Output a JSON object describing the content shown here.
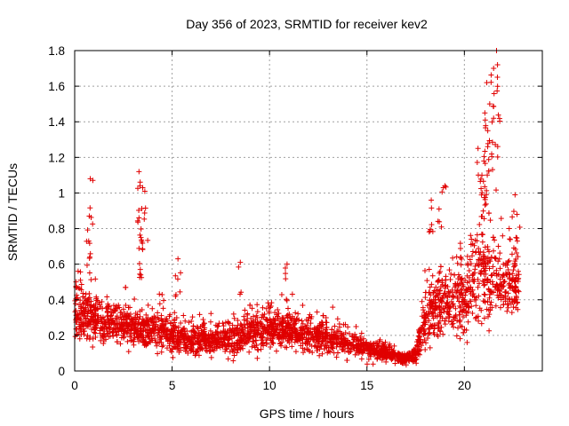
{
  "chart_data": {
    "type": "scatter",
    "title": "Day 356 of 2023, SRMTID for receiver kev2",
    "xlabel": "GPS time / hours",
    "ylabel": "SRMTID / TECUs",
    "xlim": [
      0,
      24
    ],
    "ylim": [
      0,
      1.8
    ],
    "xticks": [
      0,
      5,
      10,
      15,
      20
    ],
    "yticks": [
      0,
      0.2,
      0.4,
      0.6,
      0.8,
      1,
      1.2,
      1.4,
      1.6,
      1.8
    ],
    "grid": true,
    "marker": "+",
    "color": "#e00000",
    "series": [
      {
        "name": "kev2",
        "profile": {
          "x": [
            0,
            1,
            2,
            3,
            4,
            5,
            6,
            7,
            8,
            9,
            10,
            11,
            12,
            13,
            14,
            15,
            16,
            17,
            17.5,
            18,
            19,
            20,
            21,
            22,
            22.8
          ],
          "y": [
            0.33,
            0.3,
            0.28,
            0.24,
            0.24,
            0.2,
            0.18,
            0.17,
            0.18,
            0.22,
            0.24,
            0.23,
            0.2,
            0.18,
            0.16,
            0.13,
            0.1,
            0.07,
            0.08,
            0.32,
            0.38,
            0.42,
            0.55,
            0.48,
            0.45
          ]
        },
        "spread_profile": [
          0.12,
          0.12,
          0.1,
          0.09,
          0.09,
          0.09,
          0.08,
          0.07,
          0.08,
          0.09,
          0.09,
          0.09,
          0.08,
          0.07,
          0.06,
          0.06,
          0.04,
          0.03,
          0.04,
          0.14,
          0.16,
          0.2,
          0.25,
          0.15,
          0.12
        ],
        "samples_per_hour": 130,
        "peaks": [
          {
            "x": 0.8,
            "y": 1.08
          },
          {
            "x": 0.75,
            "y": 0.87
          },
          {
            "x": 0.72,
            "y": 0.73
          },
          {
            "x": 3.3,
            "y": 1.12
          },
          {
            "x": 3.35,
            "y": 1.04
          },
          {
            "x": 3.6,
            "y": 1.01
          },
          {
            "x": 3.3,
            "y": 0.86
          },
          {
            "x": 3.4,
            "y": 0.75
          },
          {
            "x": 8.5,
            "y": 0.61
          },
          {
            "x": 10.9,
            "y": 0.6
          },
          {
            "x": 5.3,
            "y": 0.63
          },
          {
            "x": 18.3,
            "y": 0.96
          },
          {
            "x": 18.7,
            "y": 0.91
          },
          {
            "x": 19.0,
            "y": 1.04
          },
          {
            "x": 20.7,
            "y": 1.25
          },
          {
            "x": 20.9,
            "y": 1.1
          },
          {
            "x": 21.05,
            "y": 1.45
          },
          {
            "x": 21.15,
            "y": 1.62
          },
          {
            "x": 21.3,
            "y": 1.5
          },
          {
            "x": 21.5,
            "y": 1.7
          },
          {
            "x": 21.65,
            "y": 1.8
          },
          {
            "x": 21.7,
            "y": 1.72
          },
          {
            "x": 21.5,
            "y": 1.42
          },
          {
            "x": 21.2,
            "y": 1.35
          },
          {
            "x": 21.0,
            "y": 1.18
          },
          {
            "x": 22.6,
            "y": 0.99
          },
          {
            "x": 22.7,
            "y": 0.88
          },
          {
            "x": 22.3,
            "y": 0.8
          }
        ]
      }
    ]
  }
}
